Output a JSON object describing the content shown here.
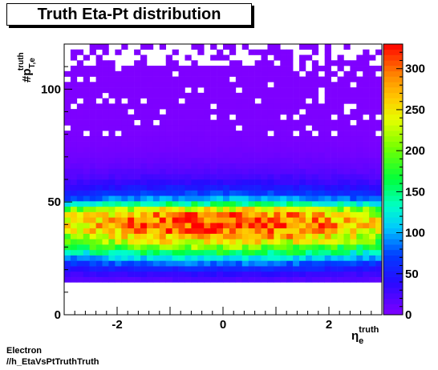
{
  "title": "Truth Eta-Pt distribution",
  "footer": {
    "line1": "Electron",
    "line2": "//h_EtaVsPtTruthTruth"
  },
  "chart_data": {
    "type": "heatmap",
    "title": "Truth Eta-Pt distribution",
    "xlabel": "η_e^truth",
    "ylabel": "#p_T,e^truth",
    "xlim": [
      -3,
      3
    ],
    "ylim": [
      0,
      120
    ],
    "zlim": [
      0,
      330
    ],
    "x_ticks": [
      -2,
      0,
      2
    ],
    "y_ticks": [
      0,
      50,
      100
    ],
    "z_ticks": [
      0,
      50,
      100,
      150,
      200,
      250,
      300
    ],
    "bins": {
      "nx": 50,
      "ny": 50
    },
    "description_points": [
      {
        "eta": 0,
        "pt": 40,
        "count": 320
      },
      {
        "eta": -2,
        "pt": 40,
        "count": 230
      },
      {
        "eta": 2,
        "pt": 40,
        "count": 230
      },
      {
        "eta": 0,
        "pt": 30,
        "count": 230
      },
      {
        "eta": 0,
        "pt": 20,
        "count": 100
      },
      {
        "eta": 0,
        "pt": 55,
        "count": 40
      },
      {
        "eta": 0,
        "pt": 80,
        "count": 6
      },
      {
        "eta": 0,
        "pt": 110,
        "count": 2
      }
    ],
    "grid": false,
    "colorbar": "right"
  }
}
